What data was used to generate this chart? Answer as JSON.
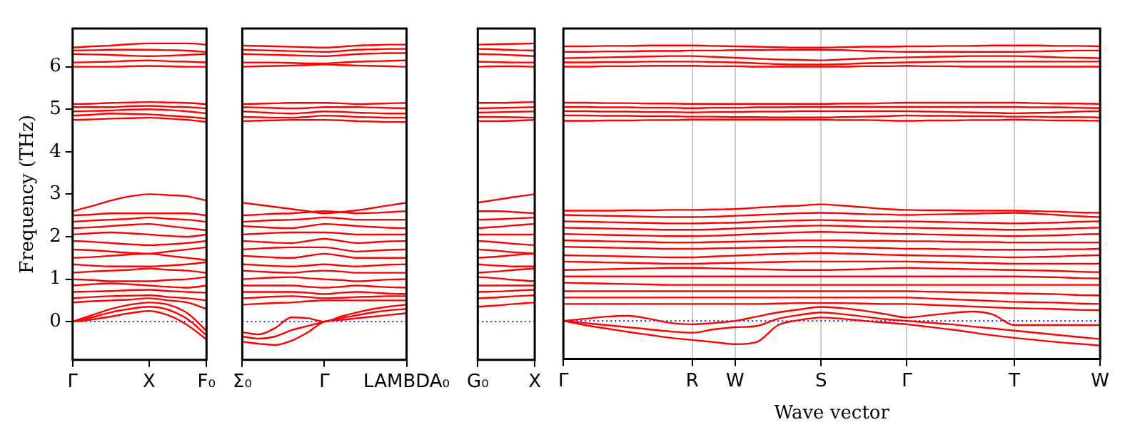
{
  "chart_data": [
    {
      "type": "line",
      "color": "#ff0000",
      "marker": "none",
      "line_style": "solid",
      "legend": false,
      "ylabel": "Frequency (THz)",
      "categories": [
        "Γ",
        null,
        null,
        null,
        "X",
        null,
        null,
        "F₀"
      ],
      "ylim": [
        -0.9,
        6.9
      ],
      "yticks": [
        0,
        1,
        2,
        3,
        4,
        5,
        6
      ],
      "ref_lines": [
        {
          "axis": "y",
          "value": 0,
          "color": "#0000ff",
          "line_style": "dotted"
        }
      ],
      "series": [
        {
          "values": [
            6.0,
            6.0,
            6.0,
            6.01,
            6.02,
            6.01,
            6.0,
            6.0
          ]
        },
        {
          "values": [
            6.1,
            6.11,
            6.12,
            6.14,
            6.15,
            6.13,
            6.12,
            6.1
          ]
        },
        {
          "values": [
            6.3,
            6.29,
            6.28,
            6.26,
            6.25,
            6.26,
            6.28,
            6.3
          ]
        },
        {
          "values": [
            6.38,
            6.39,
            6.4,
            6.4,
            6.4,
            6.39,
            6.38,
            6.35
          ]
        },
        {
          "values": [
            6.45,
            6.48,
            6.5,
            6.53,
            6.55,
            6.55,
            6.55,
            6.52
          ]
        },
        {
          "values": [
            4.75,
            4.76,
            4.78,
            4.79,
            4.8,
            4.78,
            4.75,
            4.7
          ]
        },
        {
          "values": [
            4.85,
            4.87,
            4.9,
            4.89,
            4.88,
            4.85,
            4.82,
            4.78
          ]
        },
        {
          "values": [
            4.95,
            4.96,
            4.97,
            4.99,
            5.0,
            4.98,
            4.95,
            4.9
          ]
        },
        {
          "values": [
            5.05,
            5.05,
            5.05,
            5.07,
            5.08,
            5.06,
            5.05,
            5.02
          ]
        },
        {
          "values": [
            5.12,
            5.13,
            5.15,
            5.16,
            5.17,
            5.16,
            5.15,
            5.12
          ]
        },
        {
          "values": [
            2.6,
            2.72,
            2.85,
            2.95,
            3.0,
            2.98,
            2.95,
            2.85
          ]
        },
        {
          "values": [
            2.5,
            2.52,
            2.55,
            2.55,
            2.55,
            2.55,
            2.55,
            2.5
          ]
        },
        {
          "values": [
            2.35,
            2.38,
            2.4,
            2.42,
            2.45,
            2.42,
            2.4,
            2.35
          ]
        },
        {
          "values": [
            2.2,
            2.22,
            2.25,
            2.28,
            2.3,
            2.25,
            2.2,
            2.15
          ]
        },
        {
          "values": [
            2.05,
            2.08,
            2.1,
            2.08,
            2.05,
            2.02,
            2.0,
            2.05
          ]
        },
        {
          "values": [
            1.9,
            1.88,
            1.85,
            1.82,
            1.8,
            1.82,
            1.85,
            1.9
          ]
        },
        {
          "values": [
            1.7,
            1.68,
            1.65,
            1.62,
            1.6,
            1.65,
            1.7,
            1.75
          ]
        },
        {
          "values": [
            1.5,
            1.52,
            1.55,
            1.58,
            1.6,
            1.55,
            1.5,
            1.45
          ]
        },
        {
          "values": [
            1.35,
            1.32,
            1.3,
            1.3,
            1.3,
            1.32,
            1.35,
            1.4
          ]
        },
        {
          "values": [
            1.15,
            1.18,
            1.2,
            1.22,
            1.25,
            1.22,
            1.2,
            1.15
          ]
        },
        {
          "values": [
            1.0,
            0.98,
            0.95,
            0.95,
            0.95,
            0.98,
            1.0,
            1.05
          ]
        },
        {
          "values": [
            0.85,
            0.88,
            0.9,
            0.88,
            0.85,
            0.82,
            0.8,
            0.85
          ]
        },
        {
          "values": [
            0.7,
            0.71,
            0.72,
            0.74,
            0.75,
            0.72,
            0.7,
            0.68
          ]
        },
        {
          "values": [
            0.55,
            0.58,
            0.6,
            0.61,
            0.62,
            0.58,
            0.55,
            0.5
          ]
        },
        {
          "values": [
            0.45,
            0.48,
            0.5,
            0.52,
            0.55,
            0.5,
            0.45,
            0.3
          ]
        },
        {
          "values": [
            0,
            0.15,
            0.3,
            0.4,
            0.45,
            0.4,
            0.2,
            -0.22
          ]
        },
        {
          "values": [
            0,
            0.1,
            0.22,
            0.3,
            0.35,
            0.28,
            0.06,
            -0.32
          ]
        },
        {
          "values": [
            0,
            0.05,
            0.12,
            0.2,
            0.25,
            0.15,
            -0.08,
            -0.42
          ]
        }
      ]
    },
    {
      "type": "line",
      "color": "#ff0000",
      "marker": "none",
      "line_style": "solid",
      "legend": false,
      "tick_labels": "x",
      "categories": [
        "Σ₀",
        null,
        null,
        null,
        null,
        "Γ",
        null,
        null,
        null,
        null,
        "LAMBDA₀"
      ],
      "ylim": [
        -0.9,
        6.9
      ],
      "yticks": [
        0,
        1,
        2,
        3,
        4,
        5,
        6
      ],
      "ref_lines": [
        {
          "axis": "y",
          "value": 0,
          "color": "#0000ff",
          "line_style": "dotted"
        }
      ],
      "series": [
        {
          "values": [
            6.0,
            6.01,
            6.02,
            6.03,
            6.04,
            6.05,
            6.04,
            6.03,
            6.02,
            6.01,
            6.0
          ]
        },
        {
          "values": [
            6.1,
            6.1,
            6.1,
            6.09,
            6.08,
            6.08,
            6.1,
            6.12,
            6.13,
            6.14,
            6.15
          ]
        },
        {
          "values": [
            6.3,
            6.29,
            6.28,
            6.27,
            6.26,
            6.25,
            6.27,
            6.3,
            6.31,
            6.32,
            6.32
          ]
        },
        {
          "values": [
            6.4,
            6.39,
            6.38,
            6.37,
            6.36,
            6.35,
            6.37,
            6.4,
            6.41,
            6.42,
            6.42
          ]
        },
        {
          "values": [
            6.5,
            6.49,
            6.48,
            6.47,
            6.46,
            6.45,
            6.47,
            6.5,
            6.51,
            6.52,
            6.52
          ]
        },
        {
          "values": [
            4.72,
            4.73,
            4.74,
            4.75,
            4.75,
            4.75,
            4.74,
            4.72,
            4.71,
            4.7,
            4.7
          ]
        },
        {
          "values": [
            4.82,
            4.81,
            4.8,
            4.8,
            4.82,
            4.85,
            4.84,
            4.82,
            4.81,
            4.8,
            4.8
          ]
        },
        {
          "values": [
            4.95,
            4.93,
            4.91,
            4.9,
            4.92,
            4.95,
            4.94,
            4.92,
            4.91,
            4.9,
            4.9
          ]
        },
        {
          "values": [
            5.05,
            5.04,
            5.03,
            5.02,
            5.03,
            5.05,
            5.05,
            5.05,
            5.04,
            5.03,
            5.02
          ]
        },
        {
          "values": [
            5.12,
            5.13,
            5.14,
            5.15,
            5.15,
            5.15,
            5.14,
            5.12,
            5.13,
            5.14,
            5.15
          ]
        },
        {
          "values": [
            2.8,
            2.75,
            2.7,
            2.65,
            2.6,
            2.55,
            2.58,
            2.62,
            2.68,
            2.74,
            2.8
          ]
        },
        {
          "values": [
            2.5,
            2.52,
            2.54,
            2.55,
            2.58,
            2.6,
            2.58,
            2.55,
            2.56,
            2.58,
            2.6
          ]
        },
        {
          "values": [
            2.35,
            2.37,
            2.39,
            2.4,
            2.42,
            2.45,
            2.43,
            2.4,
            2.4,
            2.4,
            2.4
          ]
        },
        {
          "values": [
            2.25,
            2.23,
            2.21,
            2.2,
            2.25,
            2.3,
            2.28,
            2.25,
            2.23,
            2.21,
            2.2
          ]
        },
        {
          "values": [
            2.05,
            2.07,
            2.09,
            2.1,
            2.1,
            2.1,
            2.08,
            2.05,
            2.05,
            2.05,
            2.05
          ]
        },
        {
          "values": [
            1.9,
            1.88,
            1.86,
            1.85,
            1.9,
            1.95,
            1.9,
            1.85,
            1.87,
            1.89,
            1.9
          ]
        },
        {
          "values": [
            1.7,
            1.72,
            1.74,
            1.75,
            1.75,
            1.75,
            1.7,
            1.65,
            1.67,
            1.69,
            1.7
          ]
        },
        {
          "values": [
            1.55,
            1.53,
            1.51,
            1.5,
            1.55,
            1.6,
            1.55,
            1.5,
            1.5,
            1.5,
            1.5
          ]
        },
        {
          "values": [
            1.35,
            1.33,
            1.31,
            1.3,
            1.32,
            1.35,
            1.32,
            1.3,
            1.32,
            1.34,
            1.35
          ]
        },
        {
          "values": [
            1.2,
            1.18,
            1.16,
            1.15,
            1.18,
            1.2,
            1.18,
            1.15,
            1.15,
            1.15,
            1.15
          ]
        },
        {
          "values": [
            1.0,
            1.02,
            1.04,
            1.05,
            1.02,
            1.0,
            0.98,
            0.95,
            0.97,
            0.99,
            1.0
          ]
        },
        {
          "values": [
            0.85,
            0.85,
            0.85,
            0.85,
            0.82,
            0.8,
            0.82,
            0.85,
            0.83,
            0.81,
            0.8
          ]
        },
        {
          "values": [
            0.7,
            0.7,
            0.7,
            0.7,
            0.68,
            0.65,
            0.68,
            0.7,
            0.68,
            0.66,
            0.65
          ]
        },
        {
          "values": [
            0.55,
            0.57,
            0.59,
            0.6,
            0.58,
            0.55,
            0.56,
            0.58,
            0.59,
            0.6,
            0.6
          ]
        },
        {
          "values": [
            0.4,
            0.42,
            0.44,
            0.45,
            0.48,
            0.5,
            0.5,
            0.5,
            0.5,
            0.5,
            0.5
          ]
        },
        {
          "values": [
            -0.25,
            -0.3,
            -0.15,
            0.1,
            0.08,
            0,
            0.12,
            0.22,
            0.3,
            0.36,
            0.4
          ]
        },
        {
          "values": [
            -0.35,
            -0.4,
            -0.35,
            -0.2,
            -0.1,
            0,
            0.08,
            0.15,
            0.22,
            0.27,
            0.3
          ]
        },
        {
          "values": [
            -0.47,
            -0.52,
            -0.55,
            -0.45,
            -0.25,
            0,
            0.04,
            0.08,
            0.12,
            0.16,
            0.2
          ]
        }
      ]
    },
    {
      "type": "line",
      "color": "#ff0000",
      "marker": "none",
      "line_style": "solid",
      "legend": false,
      "tick_labels": "x",
      "categories": [
        "G₀",
        null,
        null,
        "X"
      ],
      "ylim": [
        -0.9,
        6.9
      ],
      "yticks": [
        0,
        1,
        2,
        3,
        4,
        5,
        6
      ],
      "ref_lines": [
        {
          "axis": "y",
          "value": 0,
          "color": "#0000ff",
          "line_style": "dotted"
        }
      ],
      "series": [
        {
          "values": [
            6.0,
            6.01,
            6.01,
            6.0
          ]
        },
        {
          "values": [
            6.12,
            6.11,
            6.1,
            6.1
          ]
        },
        {
          "values": [
            6.3,
            6.29,
            6.27,
            6.25
          ]
        },
        {
          "values": [
            6.42,
            6.41,
            6.39,
            6.38
          ]
        },
        {
          "values": [
            6.52,
            6.53,
            6.54,
            6.55
          ]
        },
        {
          "values": [
            4.72,
            4.72,
            4.73,
            4.75
          ]
        },
        {
          "values": [
            4.82,
            4.82,
            4.81,
            4.8
          ]
        },
        {
          "values": [
            4.92,
            4.93,
            4.94,
            4.95
          ]
        },
        {
          "values": [
            5.02,
            5.03,
            5.04,
            5.05
          ]
        },
        {
          "values": [
            5.15,
            5.15,
            5.16,
            5.17
          ]
        },
        {
          "values": [
            2.8,
            2.87,
            2.94,
            3.0
          ]
        },
        {
          "values": [
            2.6,
            2.6,
            2.58,
            2.55
          ]
        },
        {
          "values": [
            2.4,
            2.41,
            2.43,
            2.45
          ]
        },
        {
          "values": [
            2.2,
            2.23,
            2.27,
            2.3
          ]
        },
        {
          "values": [
            2.05,
            2.05,
            2.05,
            2.05
          ]
        },
        {
          "values": [
            1.9,
            1.87,
            1.83,
            1.8
          ]
        },
        {
          "values": [
            1.7,
            1.67,
            1.63,
            1.6
          ]
        },
        {
          "values": [
            1.5,
            1.53,
            1.57,
            1.6
          ]
        },
        {
          "values": [
            1.35,
            1.32,
            1.3,
            1.3
          ]
        },
        {
          "values": [
            1.15,
            1.18,
            1.22,
            1.25
          ]
        },
        {
          "values": [
            1.05,
            1.02,
            0.98,
            0.95
          ]
        },
        {
          "values": [
            0.85,
            0.85,
            0.85,
            0.85
          ]
        },
        {
          "values": [
            0.7,
            0.71,
            0.73,
            0.75
          ]
        },
        {
          "values": [
            0.55,
            0.57,
            0.6,
            0.62
          ]
        },
        {
          "values": [
            0.35,
            0.38,
            0.42,
            0.45
          ]
        }
      ]
    },
    {
      "type": "line",
      "color": "#ff0000",
      "marker": "none",
      "line_style": "solid",
      "grid": "x",
      "legend": false,
      "tick_labels": "x",
      "xlabel": "Wave vector",
      "categories": [
        "Γ",
        null,
        null,
        null,
        null,
        null,
        "R",
        null,
        "W",
        null,
        null,
        null,
        "S",
        null,
        null,
        null,
        "Γ",
        null,
        null,
        null,
        null,
        "T",
        null,
        null,
        null,
        "W"
      ],
      "ylim": [
        -0.9,
        6.9
      ],
      "yticks": [
        0,
        1,
        2,
        3,
        4,
        5,
        6
      ],
      "ref_lines": [
        {
          "axis": "y",
          "value": 0,
          "color": "#0000ff",
          "line_style": "dotted"
        }
      ],
      "series": [
        {
          "values": [
            6.0,
            6.0,
            6.01,
            6.01,
            6.02,
            6.02,
            6.02,
            6.01,
            6.01,
            6.0,
            6.0,
            6.0,
            6.0,
            6.0,
            6.01,
            6.01,
            6.02,
            6.01,
            6.01,
            6.0,
            6.0,
            6.0,
            6.0,
            6.0,
            6.0,
            6.0
          ]
        },
        {
          "values": [
            6.1,
            6.1,
            6.11,
            6.11,
            6.12,
            6.12,
            6.12,
            6.11,
            6.1,
            6.08,
            6.06,
            6.05,
            6.05,
            6.06,
            6.08,
            6.09,
            6.1,
            6.11,
            6.12,
            6.12,
            6.12,
            6.12,
            6.12,
            6.12,
            6.12,
            6.12
          ]
        },
        {
          "values": [
            6.2,
            6.21,
            6.22,
            6.23,
            6.24,
            6.25,
            6.25,
            6.23,
            6.21,
            6.19,
            6.17,
            6.16,
            6.15,
            6.17,
            6.19,
            6.21,
            6.22,
            6.23,
            6.24,
            6.25,
            6.25,
            6.25,
            6.24,
            6.22,
            6.21,
            6.2
          ]
        },
        {
          "values": [
            6.35,
            6.35,
            6.36,
            6.36,
            6.37,
            6.37,
            6.38,
            6.38,
            6.39,
            6.39,
            6.4,
            6.4,
            6.4,
            6.39,
            6.37,
            6.36,
            6.35,
            6.35,
            6.35,
            6.35,
            6.35,
            6.35,
            6.36,
            6.37,
            6.38,
            6.38
          ]
        },
        {
          "values": [
            6.48,
            6.48,
            6.49,
            6.49,
            6.5,
            6.5,
            6.5,
            6.49,
            6.48,
            6.47,
            6.46,
            6.45,
            6.45,
            6.46,
            6.47,
            6.47,
            6.48,
            6.48,
            6.49,
            6.49,
            6.5,
            6.5,
            6.5,
            6.49,
            6.49,
            6.48
          ]
        },
        {
          "values": [
            4.72,
            4.72,
            4.73,
            4.73,
            4.74,
            4.74,
            4.75,
            4.75,
            4.75,
            4.75,
            4.75,
            4.75,
            4.75,
            4.74,
            4.74,
            4.73,
            4.72,
            4.73,
            4.73,
            4.74,
            4.74,
            4.75,
            4.74,
            4.73,
            4.73,
            4.72
          ]
        },
        {
          "values": [
            4.85,
            4.85,
            4.84,
            4.84,
            4.83,
            4.83,
            4.82,
            4.82,
            4.81,
            4.81,
            4.8,
            4.8,
            4.8,
            4.81,
            4.82,
            4.83,
            4.85,
            4.84,
            4.84,
            4.83,
            4.83,
            4.82,
            4.82,
            4.81,
            4.81,
            4.8
          ]
        },
        {
          "values": [
            4.95,
            4.95,
            4.94,
            4.94,
            4.93,
            4.93,
            4.92,
            4.93,
            4.93,
            4.94,
            4.94,
            4.95,
            4.95,
            4.95,
            4.95,
            4.95,
            4.95,
            4.94,
            4.93,
            4.92,
            4.91,
            4.9,
            4.91,
            4.92,
            4.94,
            4.95
          ]
        },
        {
          "values": [
            5.05,
            5.05,
            5.04,
            5.04,
            5.03,
            5.03,
            5.02,
            5.03,
            5.03,
            5.04,
            5.04,
            5.05,
            5.05,
            5.05,
            5.05,
            5.05,
            5.05,
            5.05,
            5.05,
            5.05,
            5.05,
            5.05,
            5.04,
            5.04,
            5.03,
            5.02
          ]
        },
        {
          "values": [
            5.15,
            5.15,
            5.14,
            5.14,
            5.13,
            5.13,
            5.12,
            5.12,
            5.12,
            5.12,
            5.12,
            5.12,
            5.12,
            5.13,
            5.13,
            5.14,
            5.15,
            5.15,
            5.15,
            5.15,
            5.15,
            5.15,
            5.14,
            5.13,
            5.13,
            5.12
          ]
        },
        {
          "values": [
            2.6,
            2.6,
            2.6,
            2.61,
            2.61,
            2.62,
            2.62,
            2.63,
            2.64,
            2.67,
            2.7,
            2.72,
            2.75,
            2.72,
            2.68,
            2.64,
            2.62,
            2.61,
            2.61,
            2.6,
            2.6,
            2.6,
            2.59,
            2.58,
            2.56,
            2.55
          ]
        },
        {
          "values": [
            2.5,
            2.49,
            2.48,
            2.47,
            2.46,
            2.45,
            2.45,
            2.46,
            2.48,
            2.5,
            2.52,
            2.54,
            2.55,
            2.54,
            2.52,
            2.51,
            2.5,
            2.51,
            2.52,
            2.53,
            2.54,
            2.55,
            2.53,
            2.5,
            2.47,
            2.45
          ]
        },
        {
          "values": [
            2.35,
            2.34,
            2.33,
            2.32,
            2.31,
            2.3,
            2.3,
            2.31,
            2.32,
            2.34,
            2.36,
            2.37,
            2.38,
            2.37,
            2.36,
            2.35,
            2.35,
            2.34,
            2.33,
            2.32,
            2.31,
            2.3,
            2.31,
            2.32,
            2.34,
            2.35
          ]
        },
        {
          "values": [
            2.2,
            2.19,
            2.18,
            2.17,
            2.16,
            2.15,
            2.15,
            2.16,
            2.18,
            2.2,
            2.22,
            2.24,
            2.25,
            2.24,
            2.22,
            2.21,
            2.2,
            2.19,
            2.18,
            2.17,
            2.16,
            2.15,
            2.16,
            2.17,
            2.19,
            2.2
          ]
        },
        {
          "values": [
            2.05,
            2.04,
            2.03,
            2.02,
            2.01,
            2.0,
            2.0,
            2.01,
            2.03,
            2.05,
            2.07,
            2.09,
            2.1,
            2.09,
            2.08,
            2.06,
            2.05,
            2.04,
            2.03,
            2.02,
            2.01,
            2.0,
            2.01,
            2.02,
            2.04,
            2.05
          ]
        },
        {
          "values": [
            1.9,
            1.89,
            1.88,
            1.87,
            1.86,
            1.85,
            1.85,
            1.86,
            1.87,
            1.88,
            1.89,
            1.9,
            1.9,
            1.9,
            1.89,
            1.89,
            1.88,
            1.88,
            1.87,
            1.86,
            1.86,
            1.85,
            1.85,
            1.85,
            1.85,
            1.85
          ]
        },
        {
          "values": [
            1.75,
            1.74,
            1.73,
            1.72,
            1.71,
            1.7,
            1.7,
            1.71,
            1.72,
            1.73,
            1.74,
            1.75,
            1.75,
            1.74,
            1.73,
            1.72,
            1.7,
            1.7,
            1.69,
            1.69,
            1.68,
            1.68,
            1.68,
            1.69,
            1.69,
            1.7
          ]
        },
        {
          "values": [
            1.55,
            1.54,
            1.53,
            1.52,
            1.51,
            1.5,
            1.5,
            1.52,
            1.54,
            1.56,
            1.58,
            1.59,
            1.6,
            1.59,
            1.58,
            1.56,
            1.55,
            1.54,
            1.53,
            1.52,
            1.51,
            1.5,
            1.51,
            1.52,
            1.54,
            1.55
          ]
        },
        {
          "values": [
            1.4,
            1.39,
            1.38,
            1.37,
            1.36,
            1.35,
            1.35,
            1.36,
            1.37,
            1.38,
            1.39,
            1.4,
            1.4,
            1.4,
            1.4,
            1.4,
            1.4,
            1.39,
            1.38,
            1.37,
            1.36,
            1.35,
            1.35,
            1.35,
            1.35,
            1.35
          ]
        },
        {
          "values": [
            1.2,
            1.21,
            1.22,
            1.23,
            1.24,
            1.25,
            1.25,
            1.24,
            1.23,
            1.22,
            1.21,
            1.2,
            1.2,
            1.21,
            1.22,
            1.24,
            1.25,
            1.24,
            1.23,
            1.22,
            1.21,
            1.2,
            1.19,
            1.18,
            1.16,
            1.15
          ]
        },
        {
          "values": [
            1.05,
            1.05,
            1.05,
            1.05,
            1.05,
            1.05,
            1.05,
            1.05,
            1.05,
            1.05,
            1.05,
            1.05,
            1.05,
            1.05,
            1.05,
            1.05,
            1.05,
            1.05,
            1.05,
            1.05,
            1.05,
            1.05,
            1.04,
            1.03,
            1.01,
            1.0
          ]
        },
        {
          "values": [
            0.9,
            0.89,
            0.88,
            0.87,
            0.86,
            0.85,
            0.85,
            0.85,
            0.85,
            0.85,
            0.85,
            0.85,
            0.85,
            0.85,
            0.85,
            0.85,
            0.85,
            0.85,
            0.85,
            0.85,
            0.85,
            0.85,
            0.85,
            0.85,
            0.85,
            0.85
          ]
        },
        {
          "values": [
            0.7,
            0.7,
            0.7,
            0.7,
            0.7,
            0.7,
            0.7,
            0.7,
            0.7,
            0.7,
            0.7,
            0.7,
            0.7,
            0.7,
            0.7,
            0.7,
            0.7,
            0.69,
            0.68,
            0.67,
            0.66,
            0.65,
            0.64,
            0.63,
            0.61,
            0.6
          ]
        },
        {
          "values": [
            0.55,
            0.55,
            0.55,
            0.55,
            0.55,
            0.55,
            0.55,
            0.55,
            0.55,
            0.55,
            0.55,
            0.55,
            0.55,
            0.55,
            0.55,
            0.55,
            0.55,
            0.53,
            0.51,
            0.49,
            0.47,
            0.45,
            0.44,
            0.43,
            0.41,
            0.4
          ]
        },
        {
          "values": [
            0.4,
            0.4,
            0.4,
            0.4,
            0.4,
            0.4,
            0.4,
            0.4,
            0.4,
            0.4,
            0.41,
            0.42,
            0.42,
            0.42,
            0.41,
            0.4,
            0.4,
            0.38,
            0.36,
            0.34,
            0.32,
            0.3,
            0.29,
            0.28,
            0.26,
            0.25
          ]
        },
        {
          "values": [
            0,
            0.05,
            0.1,
            0.12,
            0.05,
            -0.05,
            -0.08,
            -0.05,
            0.0,
            0.1,
            0.2,
            0.27,
            0.33,
            0.3,
            0.24,
            0.16,
            0.08,
            0.13,
            0.18,
            0.22,
            0.15,
            -0.1,
            -0.1,
            -0.1,
            -0.1,
            -0.1
          ]
        },
        {
          "values": [
            0,
            -0.05,
            -0.1,
            -0.15,
            -0.2,
            -0.25,
            -0.28,
            -0.2,
            -0.15,
            -0.12,
            0.05,
            0.14,
            0.2,
            0.16,
            0.1,
            0.04,
            0,
            -0.04,
            -0.08,
            -0.13,
            -0.18,
            -0.23,
            -0.28,
            -0.33,
            -0.38,
            -0.43
          ]
        },
        {
          "values": [
            0,
            -0.1,
            -0.18,
            -0.26,
            -0.33,
            -0.4,
            -0.45,
            -0.5,
            -0.55,
            -0.5,
            -0.1,
            0.02,
            0.08,
            0.05,
            0.0,
            -0.04,
            -0.08,
            -0.14,
            -0.2,
            -0.27,
            -0.34,
            -0.4,
            -0.45,
            -0.5,
            -0.54,
            -0.58
          ]
        }
      ]
    }
  ]
}
